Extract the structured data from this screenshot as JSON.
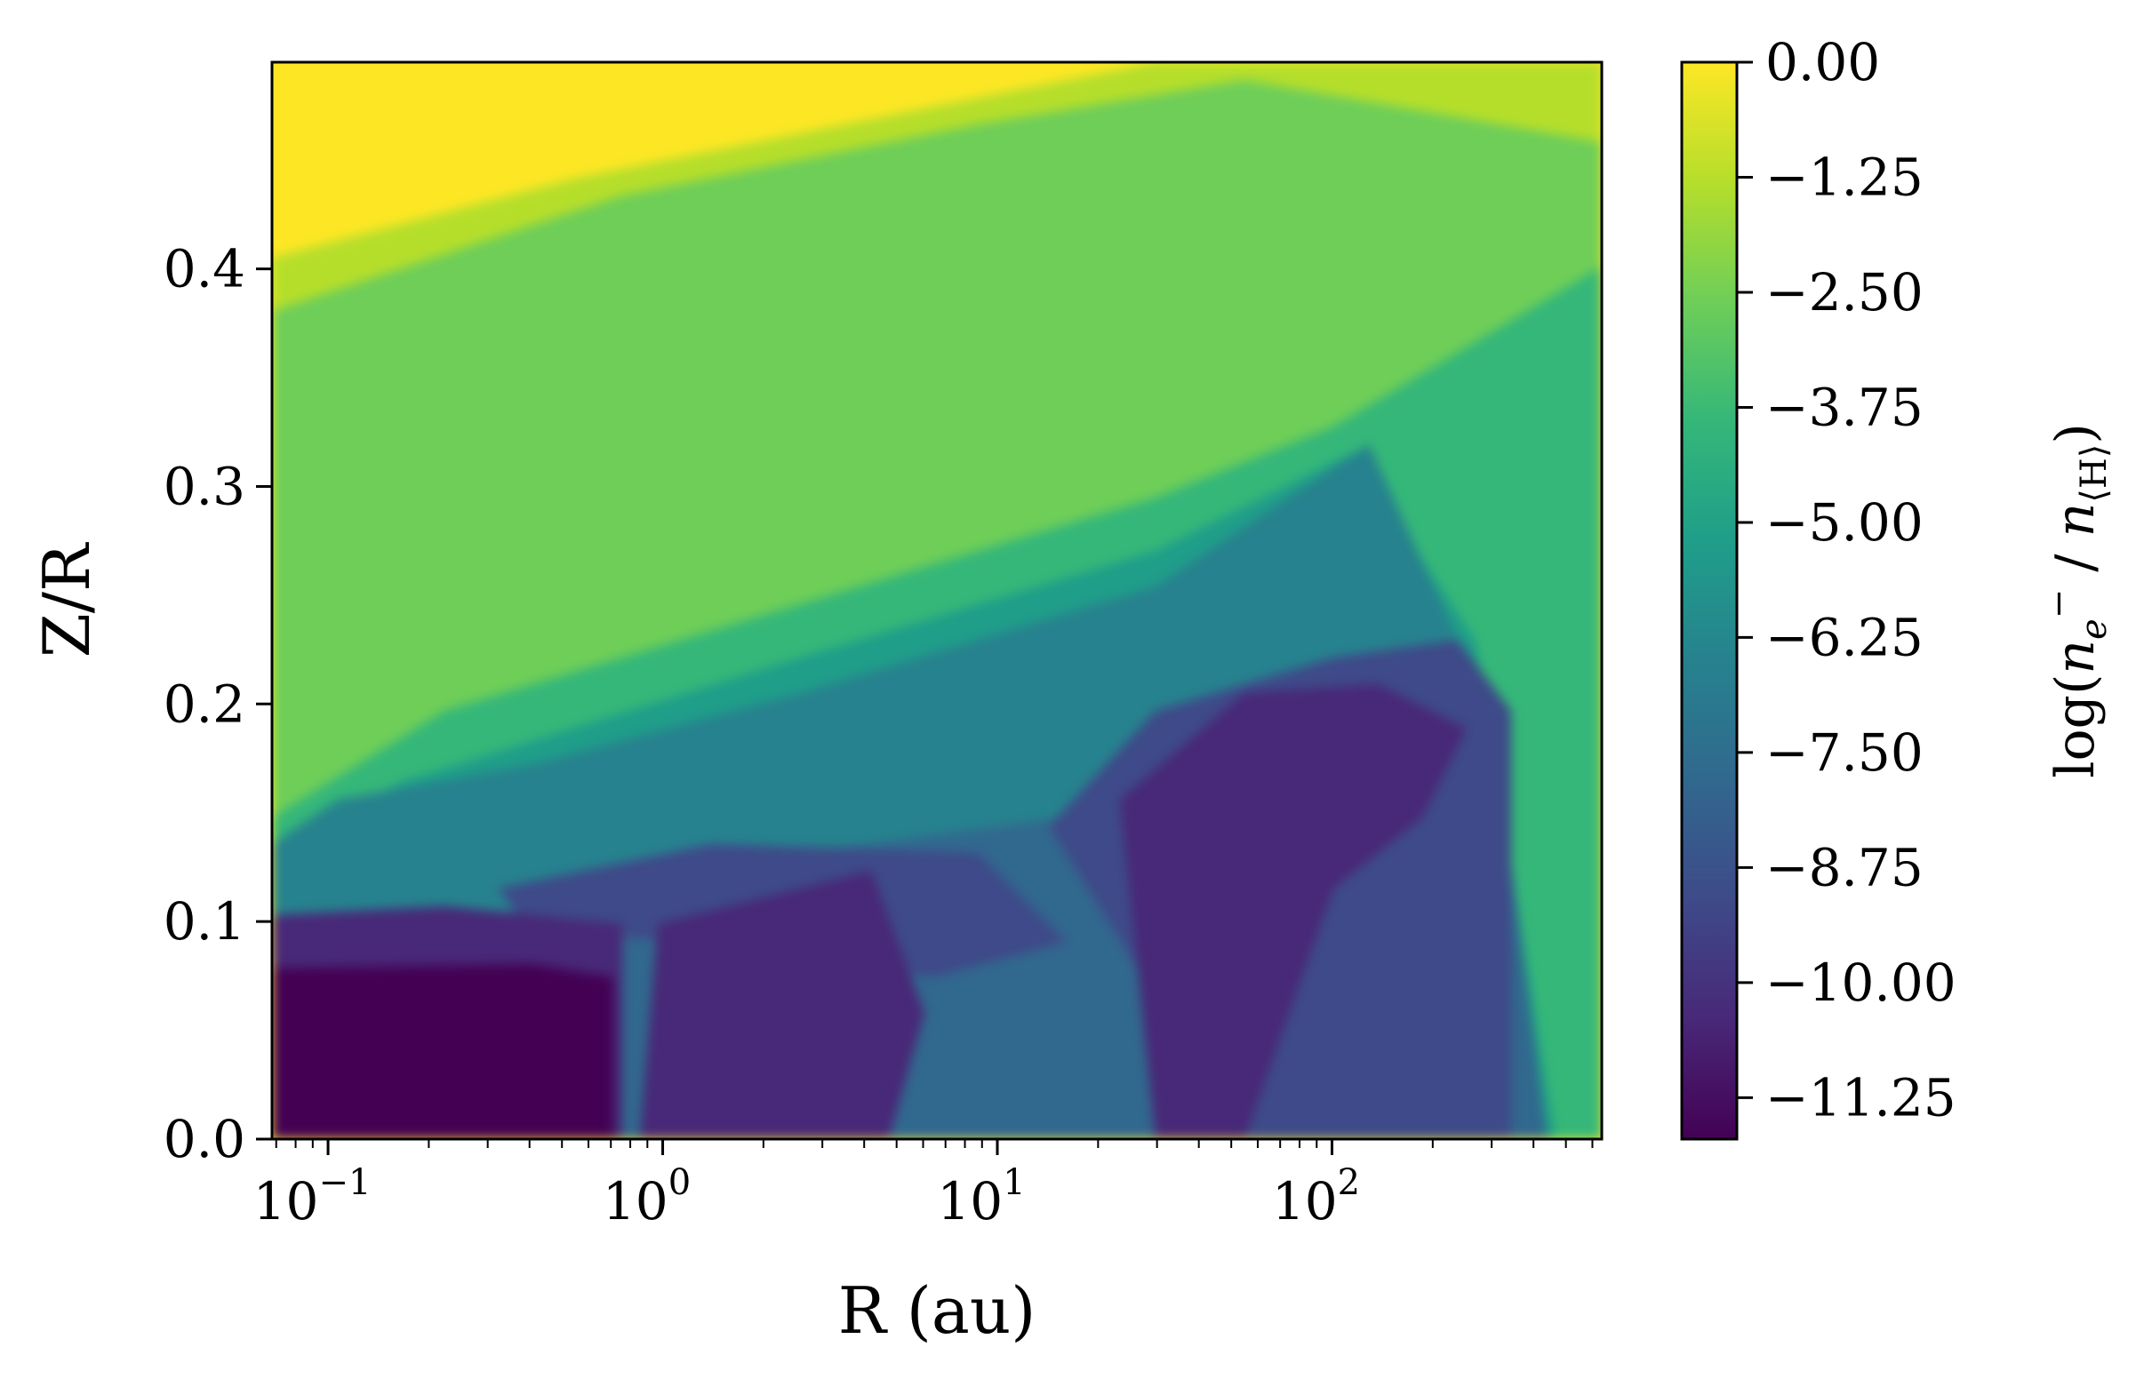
{
  "chart_data": {
    "type": "heatmap",
    "xlabel": "R (au)",
    "ylabel": "Z/R",
    "x_scale": "log",
    "xlim": [
      0.068,
      640
    ],
    "ylim": [
      0.0,
      0.495
    ],
    "x_ticks": [
      {
        "base": "10",
        "exp": "−1",
        "value": 0.1
      },
      {
        "base": "10",
        "exp": "0",
        "value": 1
      },
      {
        "base": "10",
        "exp": "1",
        "value": 10
      },
      {
        "base": "10",
        "exp": "2",
        "value": 100
      }
    ],
    "y_ticks": [
      {
        "label": "0.0",
        "value": 0.0
      },
      {
        "label": "0.1",
        "value": 0.1
      },
      {
        "label": "0.2",
        "value": 0.2
      },
      {
        "label": "0.3",
        "value": 0.3
      },
      {
        "label": "0.4",
        "value": 0.4
      }
    ],
    "colorbar": {
      "label_prefix": "log(",
      "label_ne": "n",
      "label_ne_sub": "e",
      "label_ne_sup": "−",
      "label_slash": " / ",
      "label_nh": "n",
      "label_nh_sub": "⟨H⟩",
      "label_suffix": ")",
      "range": [
        -11.7,
        0.0
      ],
      "colormap": "viridis",
      "ticks": [
        {
          "label": "0.00",
          "value": 0.0
        },
        {
          "label": "−1.25",
          "value": -1.25
        },
        {
          "label": "−2.50",
          "value": -2.5
        },
        {
          "label": "−3.75",
          "value": -3.75
        },
        {
          "label": "−5.00",
          "value": -5.0
        },
        {
          "label": "−6.25",
          "value": -6.25
        },
        {
          "label": "−7.50",
          "value": -7.5
        },
        {
          "label": "−8.75",
          "value": -8.75
        },
        {
          "label": "−10.00",
          "value": -10.0
        },
        {
          "label": "−11.25",
          "value": -11.25
        }
      ]
    },
    "colors": {
      "viridis_stops": [
        "#440154",
        "#482878",
        "#3e4a89",
        "#31688e",
        "#26828e",
        "#1f9e89",
        "#35b779",
        "#6ece58",
        "#b5de2b",
        "#fde725"
      ]
    }
  }
}
